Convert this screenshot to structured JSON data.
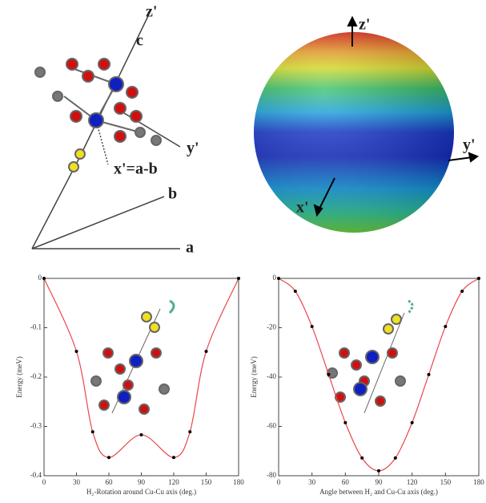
{
  "diagrams": {
    "axes": {
      "z": "z'",
      "c": "c",
      "y": "y'",
      "x": "x'=a-b",
      "b": "b",
      "a": "a"
    },
    "sphere": {
      "z": "z'",
      "y": "y'",
      "x": "x'"
    }
  },
  "chart_data": [
    {
      "type": "line",
      "xlabel": "H₂-Rotation around Cu-Cu axis (deg.)",
      "ylabel": "Energy (meV)",
      "x": [
        0,
        30,
        45,
        60,
        90,
        120,
        135,
        150,
        180
      ],
      "values": [
        0,
        -0.148,
        -0.311,
        -0.363,
        -0.317,
        -0.363,
        -0.311,
        -0.148,
        0
      ],
      "color": "#e8464a",
      "marker_color": "#000000",
      "xlim": [
        0,
        180
      ],
      "xticks": [
        0,
        30,
        60,
        90,
        120,
        150,
        180
      ],
      "ylim": [
        -0.4,
        0
      ],
      "yticks": [
        0,
        -0.1,
        -0.2,
        -0.3,
        -0.4
      ]
    },
    {
      "type": "line",
      "xlabel": "Angle between H₂ and Cu-Cu axis (deg.)",
      "ylabel": "Energy (meV)",
      "x": [
        0,
        15,
        30,
        45,
        60,
        75,
        90,
        105,
        120,
        135,
        150,
        165,
        180
      ],
      "values": [
        0,
        -5.2,
        -19.5,
        -39,
        -58.5,
        -72.8,
        -78,
        -72.8,
        -58.5,
        -39,
        -19.5,
        -5.2,
        0
      ],
      "color": "#e8464a",
      "marker_color": "#000000",
      "xlim": [
        0,
        180
      ],
      "xticks": [
        0,
        30,
        60,
        90,
        120,
        150,
        180
      ],
      "ylim": [
        -80,
        0
      ],
      "yticks": [
        0,
        -20,
        -40,
        -60,
        -80
      ]
    }
  ]
}
